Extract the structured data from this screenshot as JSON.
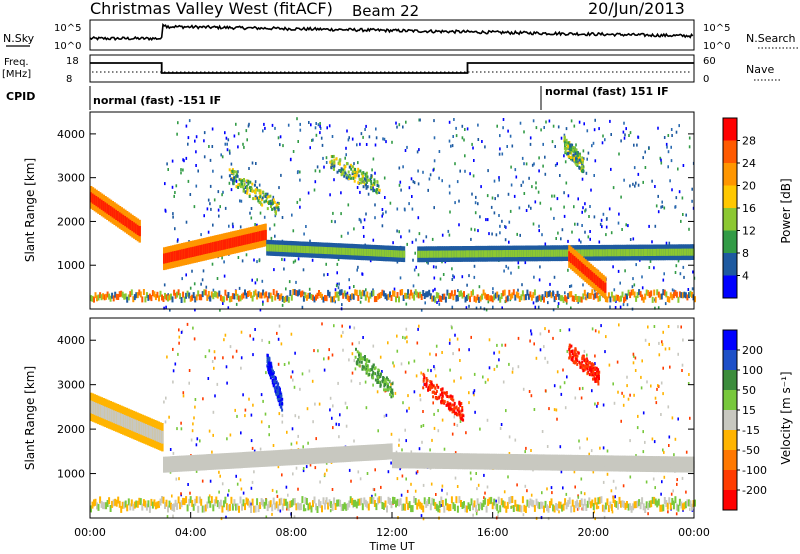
{
  "header": {
    "station": "Christmas Valley West (fitACF)",
    "beam": "Beam 22",
    "date": "20/Jun/2013"
  },
  "top_panels": {
    "nsky_label": "N.Sky",
    "nsky_ticks": [
      "10^5",
      "10^0"
    ],
    "nsearch_label": "N.Search",
    "nsearch_ticks": [
      "10^5",
      "10^0"
    ],
    "freq_label_1": "Freq.",
    "freq_label_2": "[MHz]",
    "freq_ticks": [
      "18",
      "8"
    ],
    "nave_label": "Nave",
    "nave_ticks": [
      "60",
      "0"
    ],
    "cpid_label": "CPID",
    "cpid_segments": [
      {
        "label": "normal (fast) -151 IF",
        "start_hour": 0,
        "end_hour": 18
      },
      {
        "label": "normal (fast) 151 IF",
        "start_hour": 18,
        "end_hour": 24
      }
    ],
    "freq_steps": [
      {
        "start_hour": 0,
        "end_hour": 2.85,
        "level": "high"
      },
      {
        "start_hour": 2.85,
        "end_hour": 15,
        "level": "low"
      },
      {
        "start_hour": 15,
        "end_hour": 24,
        "level": "high"
      }
    ]
  },
  "chart_data": [
    {
      "type": "heatmap",
      "name": "power",
      "title": "",
      "xlabel": "",
      "ylabel": "Slant Range [km]",
      "yticks": [
        "1000",
        "2000",
        "3000",
        "4000"
      ],
      "ylim": [
        0,
        4500
      ],
      "xlim": [
        0,
        24
      ],
      "colorbar_label": "Power [dB]",
      "colorbar_ticks": [
        "28",
        "24",
        "20",
        "16",
        "12",
        "8",
        "4"
      ],
      "colorbar_colors": [
        "#ff0000",
        "#ff5a00",
        "#ff9600",
        "#ffc800",
        "#8cc832",
        "#329b46",
        "#1e5aa0",
        "#0000ff"
      ],
      "features": [
        {
          "x_start": 0,
          "x_end": 2.0,
          "y_start": 2550,
          "y_end": 1750,
          "kind": "red_band"
        },
        {
          "x_start": 2.9,
          "x_end": 7.0,
          "y_start": 1150,
          "y_end": 1700,
          "kind": "red_band"
        },
        {
          "x_start": 7.0,
          "x_end": 12.5,
          "y_start": 1400,
          "y_end": 1250,
          "kind": "green_band"
        },
        {
          "x_start": 13.0,
          "x_end": 24.0,
          "y_start": 1250,
          "y_end": 1300,
          "kind": "green_band"
        },
        {
          "x_start": 19.0,
          "x_end": 20.5,
          "y_start": 1200,
          "y_end": 450,
          "kind": "red_band"
        },
        {
          "x_start": 9.5,
          "x_end": 11.5,
          "y_start": 3400,
          "y_end": 2800,
          "kind": "patch"
        },
        {
          "x_start": 5.5,
          "x_end": 7.5,
          "y_start": 3100,
          "y_end": 2300,
          "kind": "patch"
        },
        {
          "x_start": 18.8,
          "x_end": 19.6,
          "y_start": 3800,
          "y_end": 3300,
          "kind": "patch"
        }
      ]
    },
    {
      "type": "heatmap",
      "name": "velocity",
      "title": "",
      "xlabel": "Time UT",
      "ylabel": "Slant Range [km]",
      "yticks": [
        "1000",
        "2000",
        "3000",
        "4000"
      ],
      "ylim": [
        0,
        4500
      ],
      "xlim": [
        0,
        24
      ],
      "xticks": [
        "00:00",
        "04:00",
        "08:00",
        "12:00",
        "16:00",
        "20:00",
        "00:00"
      ],
      "colorbar_label": "Velocity [m s⁻¹]",
      "colorbar_ticks": [
        "200",
        "100",
        "50",
        "15",
        "-15",
        "-50",
        "-100",
        "-200"
      ],
      "colorbar_colors": [
        "#0000ff",
        "#1e50c8",
        "#3c8c3c",
        "#78c83c",
        "#c8c8c0",
        "#ffb400",
        "#ff7800",
        "#ff3c00",
        "#ff0000"
      ],
      "features": [
        {
          "x_start": 0,
          "x_end": 2.9,
          "y_start": 2500,
          "y_end": 1800,
          "kind": "orange_band"
        },
        {
          "x_start": 2.9,
          "x_end": 12.0,
          "y_start": 1200,
          "y_end": 1500,
          "kind": "grey_band"
        },
        {
          "x_start": 12.0,
          "x_end": 24.0,
          "y_start": 1300,
          "y_end": 1200,
          "kind": "grey_band"
        },
        {
          "x_start": 7.0,
          "x_end": 7.6,
          "y_start": 3600,
          "y_end": 2600,
          "kind": "blue_patch"
        },
        {
          "x_start": 13.2,
          "x_end": 14.8,
          "y_start": 3100,
          "y_end": 2400,
          "kind": "red_patch"
        },
        {
          "x_start": 19.0,
          "x_end": 20.2,
          "y_start": 3800,
          "y_end": 3200,
          "kind": "red_patch"
        },
        {
          "x_start": 10.5,
          "x_end": 12.0,
          "y_start": 3700,
          "y_end": 2900,
          "kind": "green_patch"
        }
      ]
    }
  ]
}
